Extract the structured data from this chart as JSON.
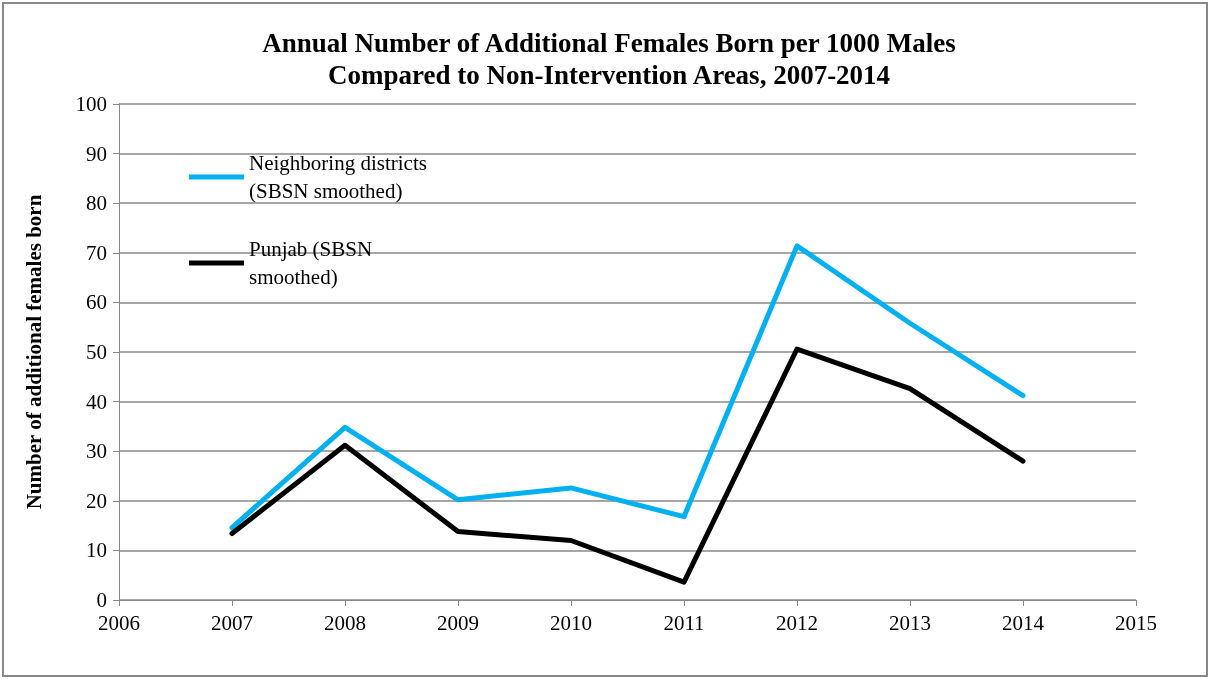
{
  "chart_data": {
    "type": "line",
    "title": "Annual Number of Additional Females Born per 1000 Males\nCompared to Non-Intervention Areas, 2007-2014",
    "ylabel": "Number of additional females born",
    "x": [
      2007,
      2008,
      2009,
      2010,
      2011,
      2012,
      2013,
      2014
    ],
    "series": [
      {
        "name": "Neighboring districts (SBSN smoothed)",
        "color": "#00b0f0",
        "values": [
          14.6,
          34.8,
          20.2,
          22.6,
          16.8,
          71.4,
          55.8,
          41.2
        ]
      },
      {
        "name": "Punjab (SBSN smoothed)",
        "color": "#000000",
        "values": [
          13.4,
          31.2,
          13.8,
          12.0,
          3.6,
          50.6,
          42.6,
          28.0
        ]
      }
    ],
    "xlim": [
      2006,
      2015
    ],
    "xticks": [
      2006,
      2007,
      2008,
      2009,
      2010,
      2011,
      2012,
      2013,
      2014,
      2015
    ],
    "ylim": [
      0,
      100
    ],
    "yticks": [
      0,
      10,
      20,
      30,
      40,
      50,
      60,
      70,
      80,
      90,
      100
    ],
    "grid": "y",
    "legend": "top left",
    "marker": "none",
    "line_style": "solid"
  }
}
